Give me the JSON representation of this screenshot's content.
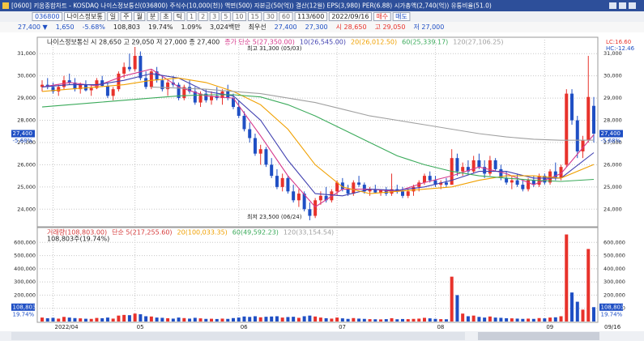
{
  "title_bar": {
    "title": "[0600] 키움종합차트 - KOSDAQ 나이스정보통신(036800) 주식수(10,000(천)) 액면(500) 자본금(50(억)) 결산(12월) EPS(3,980) PER(6.88) 시가총액(2,740(억)) 유통비율(51.0)"
  },
  "toolbar": {
    "code": "036800",
    "name": "나이스정보통",
    "periods": [
      "일",
      "주",
      "월",
      "분",
      "초",
      "틱"
    ],
    "intervals": [
      "1",
      "2",
      "3",
      "5",
      "10",
      "15",
      "30",
      "60"
    ],
    "count": "113/600",
    "date": "2022/09/16",
    "buy": "매수",
    "sell": "매도"
  },
  "info_row": {
    "price": "27,400 ▼",
    "change": "1,650",
    "rate": "-5.68%",
    "volume": "108,803",
    "volume_ratio": "19.74%",
    "turnover": "1.09%",
    "amount": "3,024백만",
    "best": "최우선",
    "ask": "27,400",
    "bid": "27,300",
    "open": "시 28,650",
    "high": "고 29,050",
    "low": "저 27,000"
  },
  "chart_data": [
    {
      "type": "candlestick",
      "legend": "나이스정보통신 시 28,650 고 29,050 저 27,000 종 27,400",
      "up_color": "#e8322b",
      "down_color": "#1f4fc4",
      "categories": [
        null,
        null,
        "2022/04",
        null,
        null,
        null,
        null,
        null,
        null,
        null,
        null,
        null,
        null,
        null,
        null,
        null,
        null,
        "05",
        null,
        null,
        null,
        null,
        null,
        null,
        null,
        null,
        null,
        null,
        null,
        null,
        null,
        null,
        null,
        null,
        null,
        null,
        "06",
        null,
        null,
        null,
        null,
        null,
        null,
        null,
        null,
        null,
        null,
        null,
        null,
        null,
        null,
        null,
        null,
        null,
        "07",
        null,
        null,
        null,
        null,
        null,
        null,
        null,
        null,
        null,
        null,
        null,
        null,
        null,
        null,
        null,
        null,
        null,
        "08",
        null,
        null,
        null,
        null,
        null,
        null,
        null,
        null,
        null,
        null,
        null,
        null,
        null,
        null,
        null,
        null,
        null,
        null,
        null,
        "09",
        null,
        null,
        null,
        null,
        null,
        null,
        null,
        null,
        null
      ],
      "ohlc": [
        [
          29500,
          29800,
          29300,
          29600
        ],
        [
          29600,
          29900,
          29400,
          29500
        ],
        [
          29500,
          29700,
          29200,
          29300
        ],
        [
          29300,
          29600,
          29100,
          29500
        ],
        [
          29500,
          30000,
          29400,
          29800
        ],
        [
          29800,
          30100,
          29600,
          29700
        ],
        [
          29700,
          29900,
          29300,
          29400
        ],
        [
          29400,
          29700,
          29200,
          29600
        ],
        [
          29600,
          29800,
          29300,
          29350
        ],
        [
          29350,
          29600,
          29100,
          29450
        ],
        [
          29450,
          29900,
          29400,
          29800
        ],
        [
          29800,
          30000,
          29500,
          29550
        ],
        [
          29550,
          29700,
          29000,
          29100
        ],
        [
          29100,
          29500,
          28900,
          29400
        ],
        [
          29400,
          30200,
          29300,
          30100
        ],
        [
          30100,
          30600,
          29900,
          30400
        ],
        [
          30400,
          31000,
          30200,
          30300
        ],
        [
          30300,
          31300,
          30200,
          30900
        ],
        [
          30900,
          31100,
          29800,
          29900
        ],
        [
          29900,
          30200,
          29400,
          29500
        ],
        [
          29500,
          30300,
          29400,
          30200
        ],
        [
          30200,
          30400,
          29700,
          29800
        ],
        [
          29800,
          30000,
          29300,
          29400
        ],
        [
          29400,
          29800,
          29100,
          29700
        ],
        [
          29700,
          30000,
          29500,
          29600
        ],
        [
          29600,
          29700,
          28900,
          29000
        ],
        [
          29000,
          29600,
          28900,
          29500
        ],
        [
          29500,
          29800,
          29200,
          29300
        ],
        [
          29300,
          29500,
          28700,
          28800
        ],
        [
          28800,
          29300,
          28600,
          29200
        ],
        [
          29200,
          29400,
          28800,
          28900
        ],
        [
          28900,
          29300,
          28700,
          29100
        ],
        [
          29100,
          29500,
          28900,
          29000
        ],
        [
          29000,
          29400,
          28700,
          29300
        ],
        [
          29300,
          29600,
          28900,
          29000
        ],
        [
          29000,
          29200,
          28500,
          28600
        ],
        [
          28600,
          28900,
          28100,
          28200
        ],
        [
          28200,
          28400,
          27500,
          27600
        ],
        [
          27600,
          27900,
          27000,
          27200
        ],
        [
          27200,
          27400,
          26400,
          26500
        ],
        [
          26500,
          26900,
          26000,
          26700
        ],
        [
          26700,
          26800,
          25900,
          26000
        ],
        [
          26000,
          26300,
          25400,
          25500
        ],
        [
          25500,
          25800,
          24900,
          25000
        ],
        [
          25000,
          25600,
          24800,
          25400
        ],
        [
          25400,
          25500,
          24700,
          24800
        ],
        [
          24800,
          25100,
          24300,
          24400
        ],
        [
          24400,
          24900,
          24100,
          24700
        ],
        [
          24700,
          24800,
          23900,
          24000
        ],
        [
          24000,
          24300,
          23500,
          23700
        ],
        [
          23700,
          24500,
          23600,
          24400
        ],
        [
          24400,
          24800,
          24200,
          24600
        ],
        [
          24600,
          25000,
          24300,
          24400
        ],
        [
          24400,
          24900,
          24300,
          24800
        ],
        [
          24800,
          25300,
          24600,
          25200
        ],
        [
          25200,
          25400,
          24800,
          24900
        ],
        [
          24900,
          25100,
          24600,
          24700
        ],
        [
          24700,
          25300,
          24600,
          25200
        ],
        [
          25200,
          25500,
          25000,
          25100
        ],
        [
          25100,
          25200,
          24700,
          24800
        ],
        [
          24800,
          25000,
          24600,
          24900
        ],
        [
          24900,
          25100,
          24700,
          24750
        ],
        [
          24750,
          24900,
          24600,
          24850
        ],
        [
          24850,
          25000,
          24600,
          24700
        ],
        [
          24700,
          25600,
          24600,
          24900
        ],
        [
          24900,
          25100,
          24700,
          24800
        ],
        [
          24800,
          25000,
          24500,
          24600
        ],
        [
          24600,
          24900,
          24500,
          24800
        ],
        [
          24800,
          25100,
          24600,
          25000
        ],
        [
          25000,
          25300,
          24800,
          25200
        ],
        [
          25200,
          25600,
          25100,
          25500
        ],
        [
          25500,
          25700,
          25200,
          25300
        ],
        [
          25300,
          25500,
          25000,
          25100
        ],
        [
          25100,
          25300,
          24900,
          25200
        ],
        [
          25200,
          25400,
          25000,
          25100
        ],
        [
          25100,
          26700,
          25100,
          26300
        ],
        [
          26300,
          26500,
          25500,
          25700
        ],
        [
          25700,
          26100,
          25500,
          25900
        ],
        [
          25900,
          26200,
          25600,
          25700
        ],
        [
          25700,
          26400,
          25600,
          26200
        ],
        [
          26200,
          26500,
          25800,
          25900
        ],
        [
          25900,
          26200,
          25400,
          25600
        ],
        [
          25600,
          26400,
          25500,
          26200
        ],
        [
          26200,
          26300,
          25700,
          25800
        ],
        [
          25800,
          26000,
          25300,
          25400
        ],
        [
          25400,
          25700,
          25100,
          25200
        ],
        [
          25200,
          25500,
          24900,
          25300
        ],
        [
          25300,
          25600,
          25000,
          25100
        ],
        [
          25100,
          25300,
          24800,
          24900
        ],
        [
          24900,
          25400,
          24800,
          25300
        ],
        [
          25300,
          25500,
          25000,
          25100
        ],
        [
          25100,
          25600,
          25000,
          25500
        ],
        [
          25500,
          25600,
          25100,
          25200
        ],
        [
          25200,
          25800,
          25100,
          25700
        ],
        [
          25700,
          26100,
          25300,
          25400
        ],
        [
          25400,
          26000,
          25300,
          25900
        ],
        [
          26000,
          29400,
          25900,
          29200
        ],
        [
          29200,
          29400,
          27800,
          28000
        ],
        [
          28000,
          28200,
          26300,
          26600
        ],
        [
          26600,
          27300,
          26300,
          27100
        ],
        [
          27100,
          30900,
          27000,
          29050
        ],
        [
          28650,
          29050,
          27000,
          27400
        ]
      ],
      "ylim": [
        23500,
        31300
      ],
      "yticks": [
        {
          "value": 24000,
          "label": "24,000"
        },
        {
          "value": 25000,
          "label": "25,000"
        },
        {
          "value": 26000,
          "label": "26,000"
        },
        {
          "value": 27000,
          "label": "27,000"
        },
        {
          "value": 28000,
          "label": "28,000"
        },
        {
          "value": 29000,
          "label": "29,000"
        },
        {
          "value": 30000,
          "label": "30,000"
        },
        {
          "value": 31000,
          "label": "31,000"
        }
      ],
      "grid": true,
      "series": [
        {
          "name": "종가 단순 5(27,350.00)",
          "color": "#d63a8c",
          "x": [
            0,
            5,
            10,
            15,
            20,
            25,
            30,
            35,
            40,
            45,
            50,
            55,
            60,
            65,
            70,
            75,
            80,
            85,
            90,
            95,
            101
          ],
          "values": [
            29500,
            29700,
            29550,
            30000,
            30300,
            29500,
            29100,
            29000,
            27300,
            25500,
            24100,
            24900,
            24900,
            24800,
            25200,
            25500,
            25900,
            25600,
            25100,
            25600,
            27350
          ]
        },
        {
          "name": "10(26,545.00)",
          "color": "#4040b0",
          "x": [
            0,
            5,
            10,
            15,
            20,
            25,
            30,
            35,
            40,
            45,
            50,
            55,
            60,
            65,
            70,
            75,
            80,
            85,
            90,
            95,
            101
          ],
          "values": [
            29500,
            29600,
            29600,
            29800,
            30100,
            29900,
            29300,
            29100,
            28000,
            26200,
            24700,
            24600,
            24900,
            24850,
            25000,
            25300,
            25700,
            25700,
            25400,
            25400,
            26545
          ]
        },
        {
          "name": "20(26,012.50)",
          "color": "#f0a000",
          "x": [
            0,
            5,
            10,
            15,
            20,
            25,
            30,
            35,
            40,
            45,
            50,
            55,
            60,
            65,
            70,
            75,
            80,
            85,
            90,
            95,
            101
          ],
          "values": [
            29300,
            29400,
            29500,
            29600,
            29800,
            29900,
            29700,
            29300,
            28700,
            27600,
            26000,
            25000,
            24700,
            24800,
            24900,
            25000,
            25300,
            25500,
            25500,
            25400,
            26012.5
          ]
        },
        {
          "name": "60(25,339.17)",
          "color": "#3aaa5a",
          "x": [
            0,
            5,
            10,
            15,
            20,
            25,
            30,
            35,
            40,
            45,
            50,
            55,
            60,
            65,
            70,
            75,
            80,
            85,
            90,
            95,
            101
          ],
          "values": [
            28600,
            28700,
            28800,
            28900,
            29000,
            29100,
            29150,
            29150,
            29050,
            28700,
            28200,
            27600,
            27000,
            26400,
            26000,
            25700,
            25500,
            25400,
            25300,
            25250,
            25339.17
          ]
        },
        {
          "name": "120(27,106.25)",
          "color": "#a0a0a0",
          "x": [
            0,
            5,
            10,
            15,
            20,
            25,
            30,
            35,
            40,
            45,
            50,
            55,
            60,
            65,
            70,
            75,
            80,
            85,
            90,
            95,
            101
          ],
          "values": [
            null,
            null,
            null,
            null,
            29500,
            29450,
            29400,
            29300,
            29200,
            29000,
            28800,
            28500,
            28200,
            28000,
            27800,
            27600,
            27400,
            27250,
            27150,
            27100,
            27106.25
          ]
        }
      ],
      "annotations": [
        "최고 31,300 (05/03)",
        "최저 23,500 (06/24)"
      ],
      "price_tag": "27,400",
      "change_tag": "-5.68%",
      "lc": "LC:16.60",
      "hc": "HC:-12.46"
    },
    {
      "type": "bar",
      "legend": "거래량(108,803.00)",
      "legend_items": [
        {
          "name": "단순 5(217,255.60)",
          "color": "#d63a3a"
        },
        {
          "name": "20(100,033.35)",
          "color": "#f0a000"
        },
        {
          "name": "60(49,592.23)",
          "color": "#3aaa5a"
        },
        {
          "name": "120(33,154.54)",
          "color": "#a0a0a0"
        }
      ],
      "note": "108,803주(19.74%)",
      "values": [
        30000,
        25000,
        28000,
        22000,
        35000,
        30000,
        26000,
        24000,
        21000,
        20000,
        27000,
        25000,
        30000,
        22000,
        45000,
        50000,
        48000,
        60000,
        55000,
        40000,
        38000,
        30000,
        28000,
        25000,
        22000,
        30000,
        26000,
        22000,
        28000,
        24000,
        20000,
        21000,
        19000,
        22000,
        20000,
        26000,
        30000,
        38000,
        35000,
        40000,
        32000,
        36000,
        38000,
        40000,
        30000,
        34000,
        36000,
        28000,
        40000,
        45000,
        38000,
        30000,
        25000,
        22000,
        30000,
        24000,
        20000,
        26000,
        22000,
        20000,
        18000,
        17000,
        16000,
        18000,
        25000,
        17000,
        19000,
        18000,
        20000,
        22000,
        28000,
        24000,
        20000,
        18000,
        17000,
        340000,
        200000,
        60000,
        40000,
        45000,
        35000,
        30000,
        38000,
        30000,
        28000,
        25000,
        24000,
        22000,
        20000,
        22000,
        20000,
        26000,
        24000,
        30000,
        32000,
        40000,
        660000,
        220000,
        150000,
        90000,
        550000,
        108803
      ],
      "ylim": [
        0,
        700000
      ],
      "yticks": [
        {
          "value": 100000,
          "label": "100,000"
        },
        {
          "value": 200000,
          "label": "200,000"
        },
        {
          "value": 300000,
          "label": "300,000"
        },
        {
          "value": 400000,
          "label": "400,000"
        },
        {
          "value": 500000,
          "label": "500,000"
        },
        {
          "value": 600000,
          "label": "600,000"
        }
      ],
      "grid": true,
      "volume_tag": "108,803",
      "ratio_tag": "19.74%",
      "end_date": "09/16"
    }
  ]
}
